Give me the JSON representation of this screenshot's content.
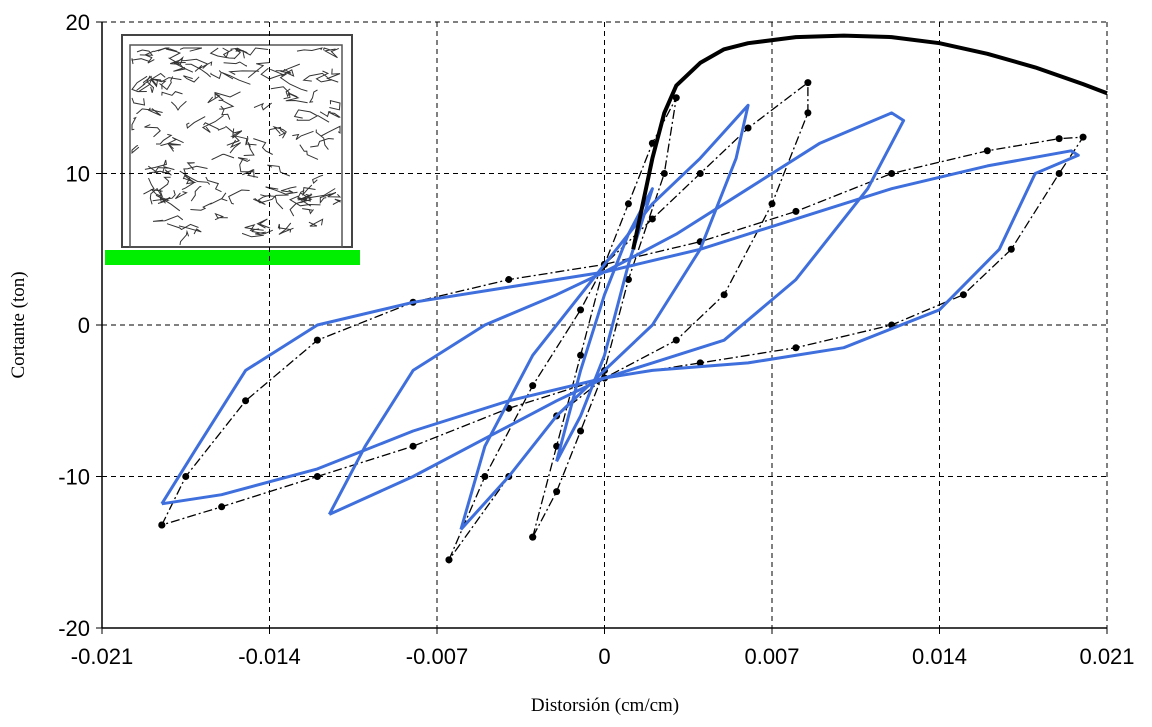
{
  "chart_data": {
    "type": "line",
    "x_label": "Distorsión (cm/cm)",
    "y_label": "Cortante (ton)",
    "xlim": [
      -0.021,
      0.021
    ],
    "xticks": [
      -0.021,
      -0.014,
      -0.007,
      0,
      0.007,
      0.014,
      0.021
    ],
    "ylim": [
      -20,
      20
    ],
    "yticks": [
      -20,
      -10,
      0,
      10,
      20
    ],
    "grid": true,
    "series": [
      {
        "color": "#000000",
        "line_style": "dashdot",
        "markers": true,
        "width": 1.3,
        "x": [
          -0.0185,
          -0.0175,
          -0.015,
          -0.012,
          -0.008,
          -0.004,
          0,
          0.004,
          0.008,
          0.012,
          0.016,
          0.019,
          0.02,
          0.019,
          0.017,
          0.015,
          0.012,
          0.008,
          0.004,
          0,
          -0.004,
          -0.008,
          -0.012,
          -0.016,
          -0.0185
        ],
        "values": [
          -13.2,
          -10,
          -5,
          -1,
          1.5,
          3,
          4,
          5.5,
          7.5,
          10,
          11.5,
          12.3,
          12.4,
          10,
          5,
          2,
          0,
          -1.5,
          -2.5,
          -3.5,
          -5.5,
          -8,
          -10,
          -12,
          -13.2
        ]
      },
      {
        "color": "#000000",
        "line_style": "dashdot",
        "markers": true,
        "width": 1.3,
        "x": [
          -0.0065,
          -0.005,
          -0.003,
          -0.001,
          0,
          0.002,
          0.004,
          0.006,
          0.0085,
          0.0085,
          0.007,
          0.005,
          0.003,
          0,
          -0.002,
          -0.004,
          -0.0065
        ],
        "values": [
          -15.5,
          -10,
          -4,
          1,
          4,
          7,
          10,
          13,
          16,
          14,
          8,
          2,
          -1,
          -3.5,
          -6,
          -10,
          -15.5
        ]
      },
      {
        "color": "#000000",
        "line_style": "dashdot",
        "markers": true,
        "width": 1.3,
        "x": [
          -0.003,
          -0.002,
          -0.001,
          0,
          0.001,
          0.002,
          0.003,
          0.0025,
          0.001,
          0,
          -0.001,
          -0.002,
          -0.003
        ],
        "values": [
          -14,
          -8,
          -2,
          4,
          8,
          12,
          15,
          10,
          3,
          -3,
          -7,
          -11,
          -14
        ]
      },
      {
        "color": "#3f6fdc",
        "line_style": "solid",
        "markers": false,
        "width": 3,
        "x": [
          -0.0185,
          -0.017,
          -0.015,
          -0.012,
          -0.008,
          -0.004,
          0,
          0.004,
          0.008,
          0.012,
          0.016,
          0.0195,
          0.0198,
          0.018,
          0.0165,
          0.014,
          0.01,
          0.006,
          0.002,
          0,
          -0.004,
          -0.008,
          -0.012,
          -0.016,
          -0.0185
        ],
        "values": [
          -11.8,
          -8,
          -3,
          0,
          1.5,
          2.5,
          3.5,
          5,
          7,
          9,
          10.5,
          11.5,
          11.2,
          10,
          5,
          1,
          -1.5,
          -2.5,
          -3,
          -3.5,
          -5,
          -7,
          -9.5,
          -11.2,
          -11.8
        ]
      },
      {
        "color": "#3f6fdc",
        "line_style": "solid",
        "markers": false,
        "width": 3,
        "x": [
          -0.0115,
          -0.01,
          -0.008,
          -0.005,
          -0.002,
          0,
          0.003,
          0.006,
          0.009,
          0.012,
          0.0125,
          0.011,
          0.008,
          0.005,
          0.002,
          0,
          -0.002,
          -0.005,
          -0.008,
          -0.0115
        ],
        "values": [
          -12.5,
          -8,
          -3,
          0,
          2,
          3.5,
          6,
          9,
          12,
          14,
          13.5,
          9,
          3,
          -1,
          -2.5,
          -3.5,
          -5,
          -7.5,
          -10,
          -12.5
        ]
      },
      {
        "color": "#3f6fdc",
        "line_style": "solid",
        "markers": false,
        "width": 3,
        "x": [
          -0.006,
          -0.005,
          -0.003,
          -0.001,
          0,
          0.002,
          0.004,
          0.006,
          0.0055,
          0.004,
          0.002,
          0,
          -0.002,
          -0.004,
          -0.006
        ],
        "values": [
          -13.5,
          -8,
          -2,
          2,
          4,
          8,
          11,
          14.5,
          11,
          5,
          0,
          -3,
          -6,
          -10,
          -13.5
        ]
      },
      {
        "color": "#3f6fdc",
        "line_style": "solid",
        "markers": false,
        "width": 3,
        "x": [
          -0.002,
          -0.001,
          0,
          0.001,
          0.002,
          0.001,
          0,
          -0.001,
          -0.002
        ],
        "values": [
          -9,
          -3,
          2,
          6,
          9,
          4,
          -2,
          -6,
          -9
        ]
      },
      {
        "color": "#000000",
        "line_style": "solid",
        "markers": false,
        "width": 4,
        "x": [
          0.0012,
          0.0016,
          0.002,
          0.0025,
          0.003,
          0.004,
          0.005,
          0.006,
          0.008,
          0.01,
          0.012,
          0.014,
          0.016,
          0.018,
          0.02,
          0.021
        ],
        "values": [
          5,
          8,
          11,
          14,
          15.8,
          17.3,
          18.2,
          18.6,
          19,
          19.1,
          19,
          18.6,
          17.9,
          17,
          15.9,
          15.3
        ]
      }
    ]
  }
}
